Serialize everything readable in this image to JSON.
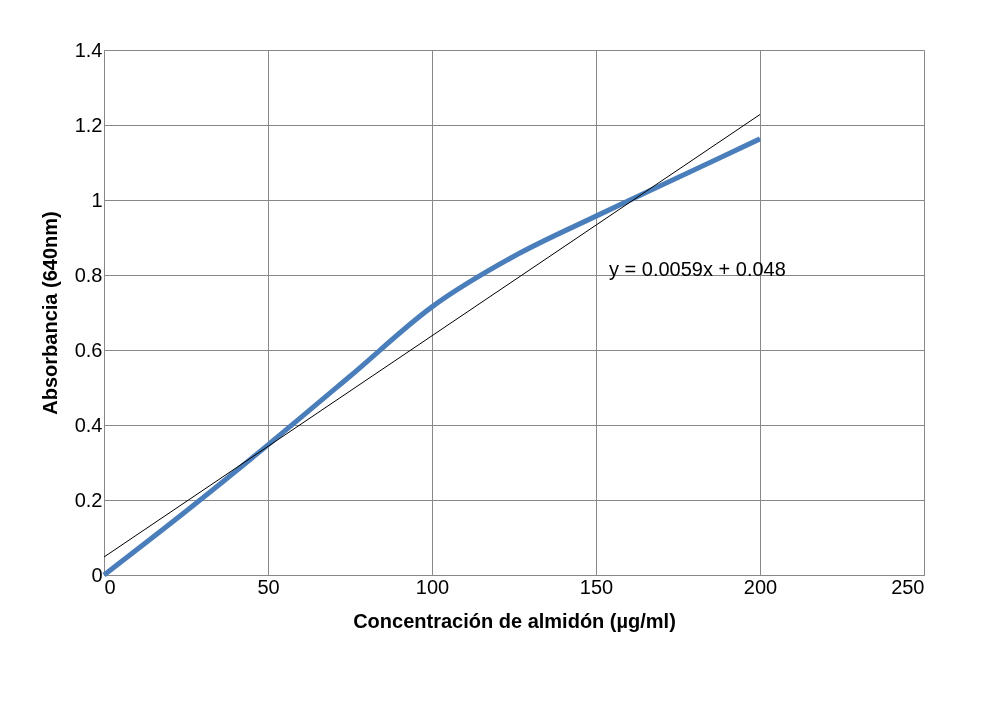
{
  "chart_data": {
    "type": "line",
    "xlabel": "Concentración de almidón (µg/ml)",
    "ylabel": "Absorbancia  (640nm)",
    "xlim": [
      0,
      250
    ],
    "xticks": [
      0,
      50,
      100,
      150,
      200,
      250
    ],
    "ylim": [
      0,
      1.4
    ],
    "yticks": [
      0,
      0.2,
      0.4,
      0.6,
      0.8,
      1,
      1.2,
      1.4
    ],
    "grid": true,
    "marker": "none",
    "line_style": "solid",
    "series": [
      {
        "color": "#4a7ebb",
        "x": [
          0,
          25,
          50,
          75,
          100,
          125,
          150,
          175,
          200
        ],
        "values": [
          0,
          0.17,
          0.347,
          0.53,
          0.715,
          0.85,
          0.957,
          1.06,
          1.163
        ]
      },
      {
        "type": "line",
        "color": "#000000",
        "x": [
          0,
          200
        ],
        "values": [
          0.048,
          1.228
        ]
      }
    ],
    "annotations": [
      "y = 0.0059x + 0.048"
    ]
  }
}
